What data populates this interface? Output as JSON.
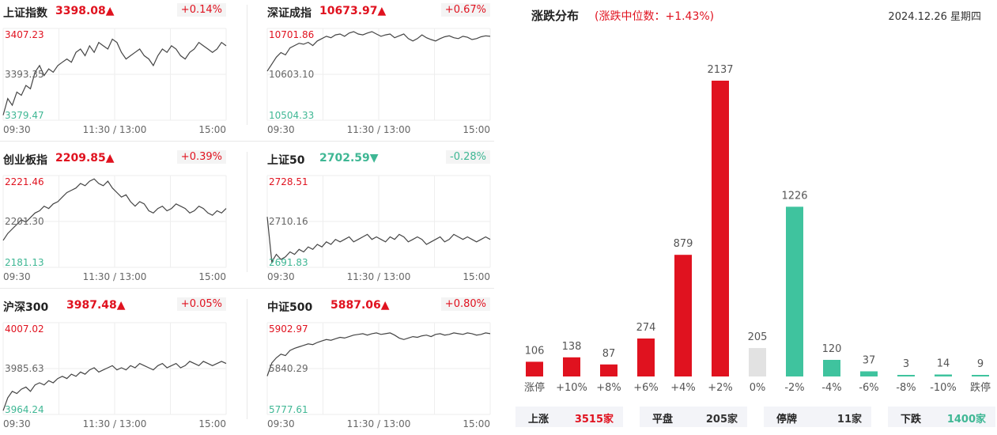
{
  "index_panels": [
    {
      "name": "上证指数",
      "price": "3398.08",
      "arrow": "▲",
      "pct": "+0.14%",
      "dir": "up",
      "y_high": "3407.23",
      "y_mid": "3393.35",
      "y_low": "3379.47",
      "y_range": [
        3379.47,
        3407.23
      ],
      "series": [
        3381,
        3386,
        3384,
        3388,
        3387,
        3390,
        3389,
        3394,
        3396,
        3393,
        3395,
        3394,
        3396,
        3397,
        3398,
        3397,
        3400,
        3401,
        3399,
        3402,
        3400,
        3403,
        3402,
        3401,
        3404,
        3403,
        3400,
        3398,
        3399,
        3400,
        3401,
        3399,
        3398,
        3396,
        3399,
        3401,
        3400,
        3402,
        3401,
        3399,
        3398,
        3400,
        3401,
        3403,
        3402,
        3401,
        3400,
        3401,
        3403,
        3402
      ]
    },
    {
      "name": "深证成指",
      "price": "10673.97",
      "arrow": "▲",
      "pct": "+0.67%",
      "dir": "up",
      "y_high": "10701.86",
      "y_mid": "10603.10",
      "y_low": "10504.33",
      "y_range": [
        10504.33,
        10701.86
      ],
      "series": [
        10610,
        10625,
        10640,
        10650,
        10645,
        10660,
        10665,
        10670,
        10668,
        10672,
        10665,
        10675,
        10680,
        10685,
        10682,
        10688,
        10690,
        10685,
        10692,
        10695,
        10690,
        10688,
        10692,
        10695,
        10690,
        10685,
        10688,
        10690,
        10682,
        10686,
        10690,
        10680,
        10675,
        10680,
        10688,
        10682,
        10678,
        10675,
        10680,
        10684,
        10686,
        10682,
        10680,
        10685,
        10683,
        10678,
        10680,
        10684,
        10686,
        10685
      ]
    },
    {
      "name": "创业板指",
      "price": "2209.85",
      "arrow": "▲",
      "pct": "+0.39%",
      "dir": "up",
      "y_high": "2221.46",
      "y_mid": "2201.30",
      "y_low": "2181.13",
      "y_range": [
        2181.13,
        2221.46
      ],
      "series": [
        2193,
        2196,
        2198,
        2200,
        2202,
        2201,
        2203,
        2205,
        2206,
        2208,
        2207,
        2209,
        2210,
        2212,
        2214,
        2215,
        2216,
        2218,
        2217,
        2219,
        2220,
        2218,
        2217,
        2219,
        2216,
        2214,
        2212,
        2213,
        2210,
        2208,
        2210,
        2209,
        2206,
        2205,
        2207,
        2208,
        2206,
        2207,
        2209,
        2208,
        2207,
        2205,
        2206,
        2208,
        2207,
        2205,
        2204,
        2206,
        2205,
        2207
      ]
    },
    {
      "name": "上证50",
      "price": "2702.59",
      "arrow": "▼",
      "pct": "-0.28%",
      "dir": "down",
      "y_high": "2728.51",
      "y_mid": "2710.16",
      "y_low": "2691.83",
      "y_range": [
        2691.83,
        2728.51
      ],
      "series": [
        2712,
        2694,
        2697,
        2695,
        2696,
        2698,
        2697,
        2699,
        2698,
        2700,
        2699,
        2701,
        2700,
        2702,
        2701,
        2703,
        2702,
        2703,
        2704,
        2702,
        2703,
        2704,
        2705,
        2703,
        2704,
        2703,
        2702,
        2704,
        2703,
        2705,
        2704,
        2702,
        2703,
        2704,
        2703,
        2701,
        2702,
        2703,
        2704,
        2702,
        2703,
        2705,
        2704,
        2703,
        2704,
        2703,
        2702,
        2703,
        2704,
        2703
      ]
    },
    {
      "name": "沪深300",
      "price": "3987.48",
      "arrow": "▲",
      "pct": "+0.05%",
      "dir": "up",
      "y_high": "4007.02",
      "y_mid": "3985.63",
      "y_low": "3964.24",
      "y_range": [
        3964.24,
        4007.02
      ],
      "series": [
        3966,
        3972,
        3975,
        3974,
        3976,
        3977,
        3975,
        3978,
        3979,
        3978,
        3980,
        3979,
        3981,
        3982,
        3981,
        3983,
        3982,
        3984,
        3983,
        3985,
        3986,
        3984,
        3985,
        3986,
        3987,
        3985,
        3986,
        3985,
        3987,
        3986,
        3988,
        3987,
        3986,
        3985,
        3987,
        3988,
        3986,
        3987,
        3988,
        3986,
        3987,
        3989,
        3988,
        3987,
        3989,
        3988,
        3987,
        3988,
        3989,
        3988
      ]
    },
    {
      "name": "中证500",
      "price": "5887.06",
      "arrow": "▲",
      "pct": "+0.80%",
      "dir": "up",
      "y_high": "5902.97",
      "y_mid": "5840.29",
      "y_low": "5777.61",
      "y_range": [
        5777.61,
        5902.97
      ],
      "series": [
        5830,
        5848,
        5855,
        5860,
        5858,
        5865,
        5868,
        5870,
        5872,
        5874,
        5873,
        5876,
        5878,
        5880,
        5879,
        5881,
        5883,
        5882,
        5884,
        5886,
        5887,
        5888,
        5886,
        5888,
        5889,
        5887,
        5888,
        5889,
        5886,
        5882,
        5880,
        5882,
        5884,
        5883,
        5885,
        5886,
        5884,
        5887,
        5888,
        5886,
        5887,
        5889,
        5888,
        5887,
        5889,
        5888,
        5886,
        5887,
        5889,
        5888
      ]
    }
  ],
  "x_ticks": [
    "09:30",
    "11:30 / 13:00",
    "15:00"
  ],
  "distribution": {
    "title": "涨跌分布",
    "median_text": "(涨跌中位数：+1.43%)",
    "date": "2024.12.26 星期四",
    "stats": [
      {
        "label": "上涨",
        "value": "3515家",
        "color": "#e0121f"
      },
      {
        "label": "平盘",
        "value": "205家",
        "color": "#333333"
      },
      {
        "label": "停牌",
        "value": "11家",
        "color": "#333333"
      },
      {
        "label": "下跌",
        "value": "1400家",
        "color": "#3fb794"
      }
    ]
  },
  "chart_data": {
    "type": "bar",
    "title": "涨跌分布",
    "categories": [
      "涨停",
      "+10%",
      "+8%",
      "+6%",
      "+4%",
      "+2%",
      "0%",
      "-2%",
      "-4%",
      "-6%",
      "-8%",
      "-10%",
      "跌停"
    ],
    "values": [
      106,
      138,
      87,
      274,
      879,
      2137,
      205,
      1226,
      120,
      37,
      3,
      14,
      9
    ],
    "colors": [
      "#e0121f",
      "#e0121f",
      "#e0121f",
      "#e0121f",
      "#e0121f",
      "#e0121f",
      "#e2e2e2",
      "#3fc39e",
      "#3fc39e",
      "#3fc39e",
      "#3fc39e",
      "#3fc39e",
      "#3fc39e"
    ],
    "ylim": [
      0,
      2137
    ]
  }
}
